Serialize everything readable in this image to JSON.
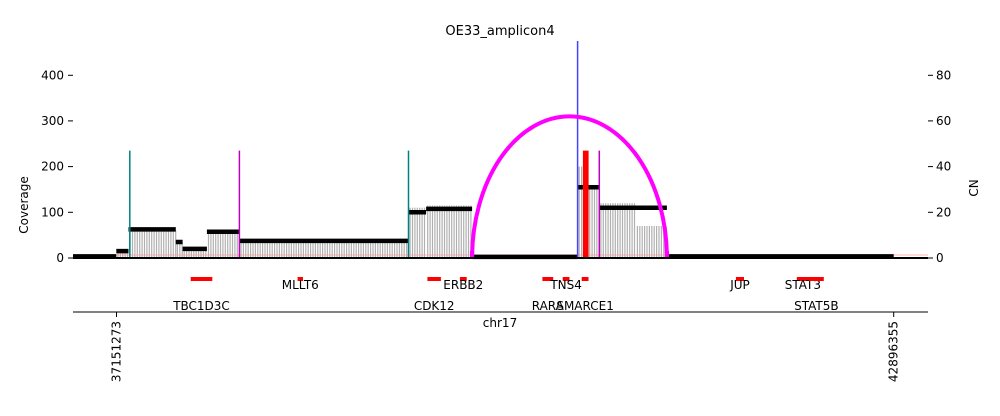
{
  "chart_data": {
    "type": "bar",
    "title": "OE33_amplicon4",
    "xlabel": "chr17",
    "ylabel_left": "Coverage",
    "ylabel_right": "CN",
    "ylim_left": [
      0,
      475
    ],
    "ylim_right": [
      0,
      95
    ],
    "yticks_left": [
      0,
      100,
      200,
      300,
      400
    ],
    "yticks_right": [
      0,
      20,
      40,
      60,
      80
    ],
    "xticks": [
      "37151273",
      "42896355"
    ],
    "xrange": [
      36830000,
      43150000
    ],
    "grid": false,
    "colors": {
      "coverage": "#b0b0b0",
      "cn_segment": "#000000",
      "breakpoint_arc": "#ff00ff",
      "gene": "#ff0000",
      "vline_teal": "#008080",
      "vline_magenta": "#c000c0",
      "vline_blue": "#4444ff"
    },
    "coverage_blocks": [
      [
        37150000,
        37240000,
        15
      ],
      [
        37240000,
        37590000,
        60
      ],
      [
        37590000,
        37640000,
        35
      ],
      [
        37640000,
        37820000,
        25
      ],
      [
        37820000,
        38060000,
        55
      ],
      [
        38060000,
        39310000,
        40
      ],
      [
        39310000,
        39440000,
        110
      ],
      [
        39440000,
        39780000,
        115
      ],
      [
        39780000,
        40560000,
        5
      ],
      [
        40560000,
        40620000,
        200
      ],
      [
        40620000,
        40720000,
        150
      ],
      [
        40720000,
        40990000,
        120
      ],
      [
        40990000,
        41220000,
        70
      ],
      [
        41220000,
        42896355,
        5
      ]
    ],
    "cn_segments": [
      [
        36830000,
        37150000,
        0.7
      ],
      [
        37150000,
        37240000,
        3
      ],
      [
        37240000,
        37590000,
        12.5
      ],
      [
        37590000,
        37640000,
        7
      ],
      [
        37640000,
        37820000,
        4
      ],
      [
        37820000,
        38060000,
        11.5
      ],
      [
        38060000,
        39310000,
        7.5
      ],
      [
        39310000,
        39440000,
        20
      ],
      [
        39440000,
        39780000,
        21.5
      ],
      [
        39780000,
        40560000,
        0.5
      ],
      [
        40560000,
        40720000,
        31
      ],
      [
        40720000,
        41220000,
        22
      ],
      [
        41220000,
        42896355,
        0.7
      ]
    ],
    "breakpoint_arc": {
      "start": 39780000,
      "end": 41220000,
      "height": 62
    },
    "vertical_lines": [
      {
        "x": 37250000,
        "cn": 47,
        "color": "teal"
      },
      {
        "x": 38060000,
        "cn": 47,
        "color": "magenta"
      },
      {
        "x": 39310000,
        "cn": 47,
        "color": "teal"
      },
      {
        "x": 39780000,
        "cn": 3,
        "color": "magenta"
      },
      {
        "x": 40560000,
        "cn": 95,
        "color": "blue"
      },
      {
        "x": 40610000,
        "cn": 47,
        "color": "red"
      },
      {
        "x": 40630000,
        "cn": 47,
        "color": "red"
      },
      {
        "x": 40720000,
        "cn": 47,
        "color": "magenta"
      },
      {
        "x": 41220000,
        "cn": 3,
        "color": "magenta"
      }
    ],
    "genes": [
      {
        "name": "TBC1D3C",
        "start": 37700000,
        "end": 37860000,
        "row": 2
      },
      {
        "name": "MLLT6",
        "start": 38490000,
        "end": 38530000,
        "row": 1
      },
      {
        "name": "CDK12",
        "start": 39450000,
        "end": 39550000,
        "row": 2
      },
      {
        "name": "ERBB2",
        "start": 39690000,
        "end": 39740000,
        "row": 1
      },
      {
        "name": "RARA",
        "start": 40300000,
        "end": 40380000,
        "row": 2
      },
      {
        "name": "TNS4",
        "start": 40450000,
        "end": 40500000,
        "row": 1
      },
      {
        "name": "SMARCE1",
        "start": 40590000,
        "end": 40640000,
        "row": 2
      },
      {
        "name": "JUP",
        "start": 41730000,
        "end": 41790000,
        "row": 1
      },
      {
        "name": "STAT3",
        "start": 42180000,
        "end": 42270000,
        "row": 1
      },
      {
        "name": "STAT5B",
        "start": 42270000,
        "end": 42380000,
        "row": 2
      }
    ]
  }
}
